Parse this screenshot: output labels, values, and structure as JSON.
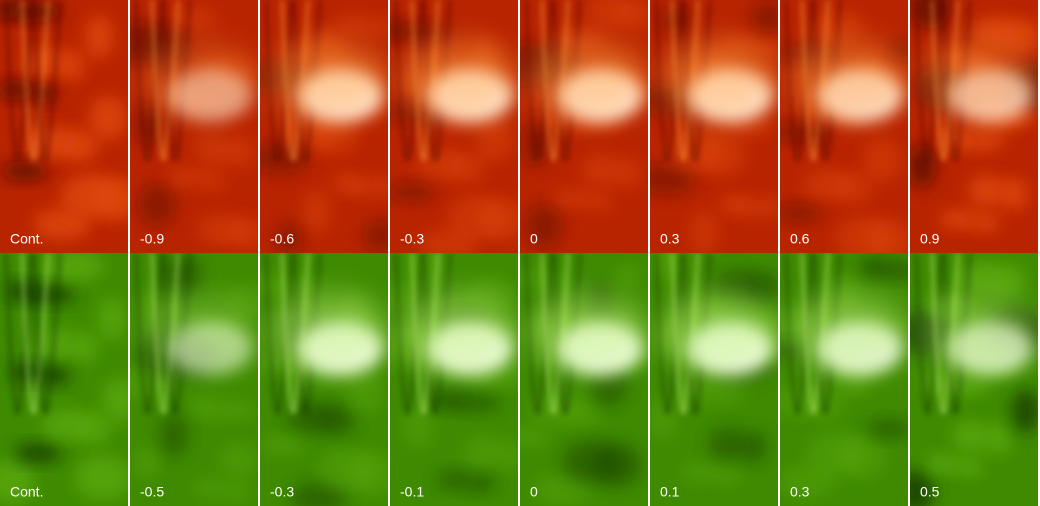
{
  "rows": [
    {
      "panels": [
        "Cont.",
        "-0.9",
        "-0.6",
        "-0.3",
        "0",
        "0.3",
        "0.6",
        "0.9"
      ]
    },
    {
      "panels": [
        "Cont.",
        "-0.5",
        "-0.3",
        "-0.1",
        "0",
        "0.1",
        "0.3",
        "0.5"
      ]
    }
  ]
}
